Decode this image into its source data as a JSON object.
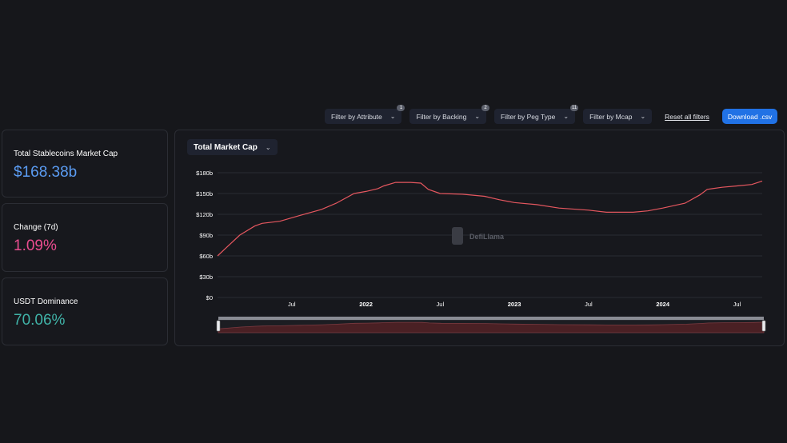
{
  "filters": [
    {
      "label": "Filter by Attribute",
      "badge": "1"
    },
    {
      "label": "Filter by Backing",
      "badge": "2"
    },
    {
      "label": "Filter by Peg Type",
      "badge": "11"
    },
    {
      "label": "Filter by Mcap",
      "badge": ""
    }
  ],
  "reset_label": "Reset all filters",
  "download_label": "Download .csv",
  "chevron_glyph": "⌄",
  "stats": {
    "market_cap": {
      "label": "Total Stablecoins Market Cap",
      "value": "$168.38b",
      "color": "#5b9cf3"
    },
    "change": {
      "label": "Change (7d)",
      "value": "1.09%",
      "color": "#ea4c8f"
    },
    "dominance": {
      "label": "USDT Dominance",
      "value": "70.06%",
      "color": "#40b3a8"
    }
  },
  "chart_select_label": "Total Market Cap",
  "watermark": "DefiLlama",
  "colors": {
    "line": "#e5575f",
    "grid": "#2a2c33",
    "brush_fill": "#4a2024"
  },
  "chart_data": {
    "type": "line",
    "title": "",
    "xlabel": "",
    "ylabel": "",
    "ylim": [
      0,
      180
    ],
    "yticks": [
      "$0",
      "$30b",
      "$60b",
      "$90b",
      "$120b",
      "$150b",
      "$180b"
    ],
    "xrange": [
      2021.0,
      2024.67
    ],
    "xticks": [
      {
        "label": "Jul",
        "x": 2021.5,
        "bold": false
      },
      {
        "label": "2022",
        "x": 2022.0,
        "bold": true
      },
      {
        "label": "Jul",
        "x": 2022.5,
        "bold": false
      },
      {
        "label": "2023",
        "x": 2023.0,
        "bold": true
      },
      {
        "label": "Jul",
        "x": 2023.5,
        "bold": false
      },
      {
        "label": "2024",
        "x": 2024.0,
        "bold": true
      },
      {
        "label": "Jul",
        "x": 2024.5,
        "bold": false
      }
    ],
    "series": [
      {
        "name": "",
        "points": [
          [
            2021.0,
            60
          ],
          [
            2021.06,
            72
          ],
          [
            2021.15,
            90
          ],
          [
            2021.25,
            103
          ],
          [
            2021.3,
            107
          ],
          [
            2021.42,
            110
          ],
          [
            2021.55,
            118
          ],
          [
            2021.7,
            127
          ],
          [
            2021.8,
            136
          ],
          [
            2021.92,
            150
          ],
          [
            2022.0,
            153
          ],
          [
            2022.08,
            157
          ],
          [
            2022.12,
            161
          ],
          [
            2022.2,
            166
          ],
          [
            2022.3,
            166
          ],
          [
            2022.37,
            165
          ],
          [
            2022.42,
            156
          ],
          [
            2022.5,
            150
          ],
          [
            2022.65,
            149
          ],
          [
            2022.8,
            146
          ],
          [
            2022.9,
            141
          ],
          [
            2023.0,
            137
          ],
          [
            2023.15,
            134
          ],
          [
            2023.3,
            129
          ],
          [
            2023.5,
            126
          ],
          [
            2023.62,
            123
          ],
          [
            2023.8,
            123
          ],
          [
            2023.9,
            125
          ],
          [
            2024.0,
            129
          ],
          [
            2024.15,
            136
          ],
          [
            2024.25,
            148
          ],
          [
            2024.3,
            156
          ],
          [
            2024.4,
            159
          ],
          [
            2024.5,
            161
          ],
          [
            2024.6,
            163
          ],
          [
            2024.67,
            168
          ]
        ]
      }
    ],
    "grid": true,
    "legend": "none"
  }
}
